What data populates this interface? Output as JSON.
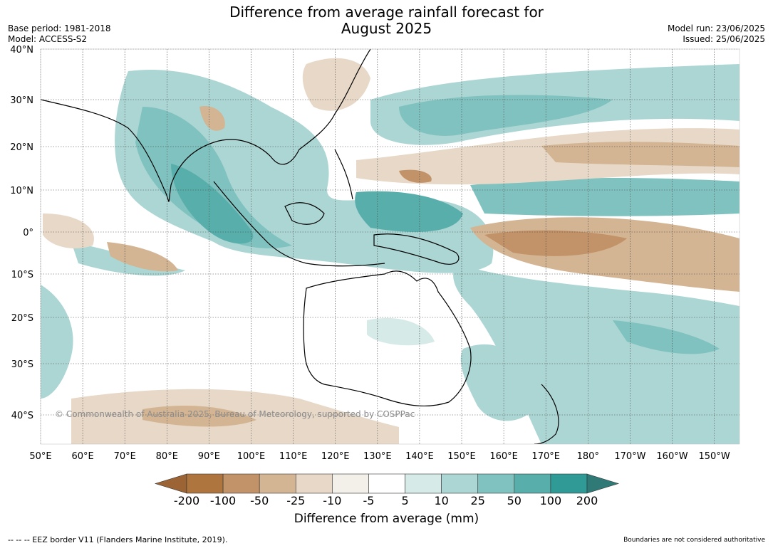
{
  "title_line1": "Difference from average rainfall forecast for",
  "title_line2": "August 2025",
  "meta": {
    "base_period": "Base period: 1981-2018",
    "model": "Model: ACCESS-S2",
    "model_run": "Model run: 23/06/2025",
    "issued": "Issued: 25/06/2025"
  },
  "lat_labels": [
    "40°N",
    "30°N",
    "20°N",
    "10°N",
    "0°",
    "10°S",
    "20°S",
    "30°S",
    "40°S"
  ],
  "lon_labels": [
    "50°E",
    "60°E",
    "70°E",
    "80°E",
    "90°E",
    "100°E",
    "110°E",
    "120°E",
    "130°E",
    "140°E",
    "150°E",
    "160°E",
    "170°E",
    "180°",
    "170°W",
    "160°W",
    "150°W"
  ],
  "copyright": "© Commonwealth of Australia 2025, Bureau of Meteorology, supported by COSPPac",
  "colorbar": {
    "ticks": [
      "-200",
      "-100",
      "-50",
      "-25",
      "-10",
      "-5",
      "5",
      "10",
      "25",
      "50",
      "100",
      "200"
    ],
    "colors": [
      "#9c6434",
      "#ae753e",
      "#c29268",
      "#d3b493",
      "#e7d8c7",
      "#f3efe9",
      "#ffffff",
      "#d6eae8",
      "#acd6d4",
      "#80c2bf",
      "#58aeab",
      "#2f9a96",
      "#2f7a76"
    ],
    "title": "Difference from average (mm)"
  },
  "footer_left": "--  --  -- EEZ border V11 (Flanders Marine Institute, 2019).",
  "footer_right": "Boundaries are not considered authoritative"
}
